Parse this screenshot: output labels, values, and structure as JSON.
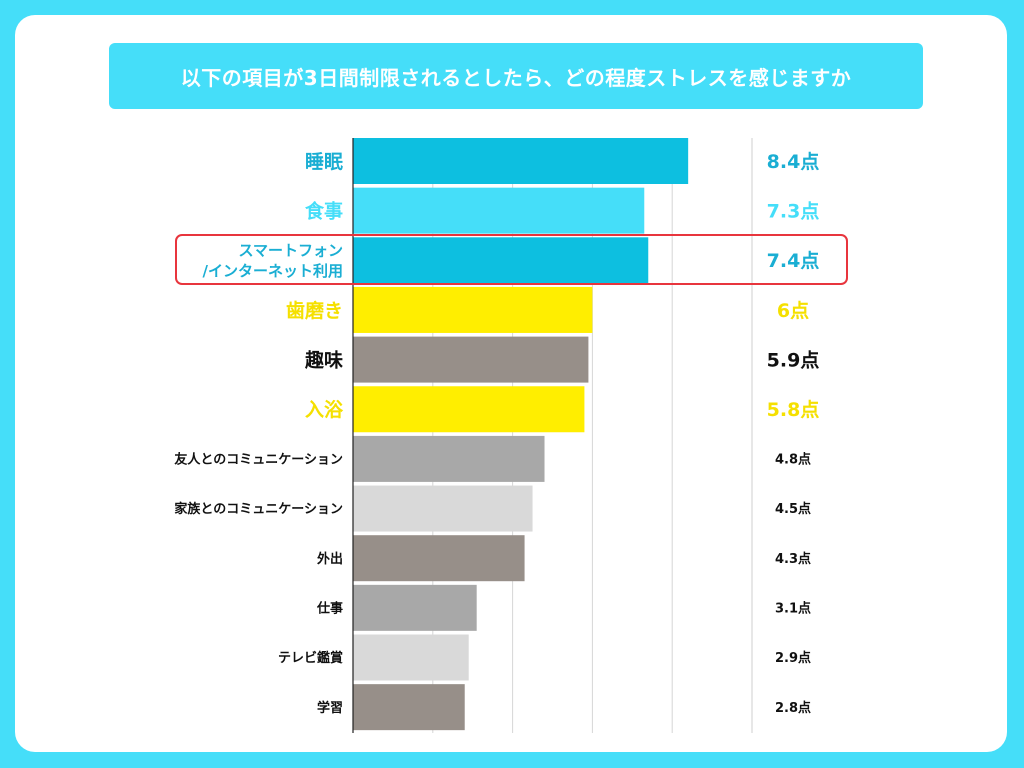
{
  "chart_data": {
    "type": "bar",
    "orientation": "horizontal",
    "title": "以下の項目が3日間制限されるとしたら、どの程度ストレスを感じますか",
    "categories": [
      "睡眠",
      "食事",
      "スマートフォン/インターネット利用",
      "歯磨き",
      "趣味",
      "入浴",
      "友人とのコミュニケーション",
      "家族とのコミュニケーション",
      "外出",
      "仕事",
      "テレビ鑑賞",
      "学習"
    ],
    "category_lines": [
      [
        "睡眠"
      ],
      [
        "食事"
      ],
      [
        "スマートフォン",
        "/インターネット利用"
      ],
      [
        "歯磨き"
      ],
      [
        "趣味"
      ],
      [
        "入浴"
      ],
      [
        "友人とのコミュニケーション"
      ],
      [
        "家族とのコミュニケーション"
      ],
      [
        "外出"
      ],
      [
        "仕事"
      ],
      [
        "テレビ鑑賞"
      ],
      [
        "学習"
      ]
    ],
    "values": [
      8.4,
      7.3,
      7.4,
      6,
      5.9,
      5.8,
      4.8,
      4.5,
      4.3,
      3.1,
      2.9,
      2.8
    ],
    "value_labels": [
      "8.4点",
      "7.3点",
      "7.4点",
      "6点",
      "5.9点",
      "5.8点",
      "4.8点",
      "4.5点",
      "4.3点",
      "3.1点",
      "2.9点",
      "2.8点"
    ],
    "bar_colors": [
      "#0dbfe0",
      "#45def9",
      "#0dbfe0",
      "#ffee00",
      "#978f89",
      "#ffee00",
      "#a8a8a8",
      "#d9d9d9",
      "#978f89",
      "#a8a8a8",
      "#d9d9d9",
      "#978f89"
    ],
    "label_colors": [
      "#1aaed3",
      "#45def9",
      "#1aaed3",
      "#f5e000",
      "#111111",
      "#f5e000",
      "#111111",
      "#111111",
      "#111111",
      "#111111",
      "#111111",
      "#111111"
    ],
    "label_emphasis": [
      "large",
      "large",
      "medium",
      "large",
      "large",
      "large",
      "small",
      "small",
      "small",
      "small",
      "small",
      "small"
    ],
    "highlighted_category": "スマートフォン/インターネット利用",
    "highlight_color": "#e8353d",
    "xlim": [
      0,
      10
    ],
    "grid": true,
    "xlabel": "",
    "ylabel": ""
  }
}
